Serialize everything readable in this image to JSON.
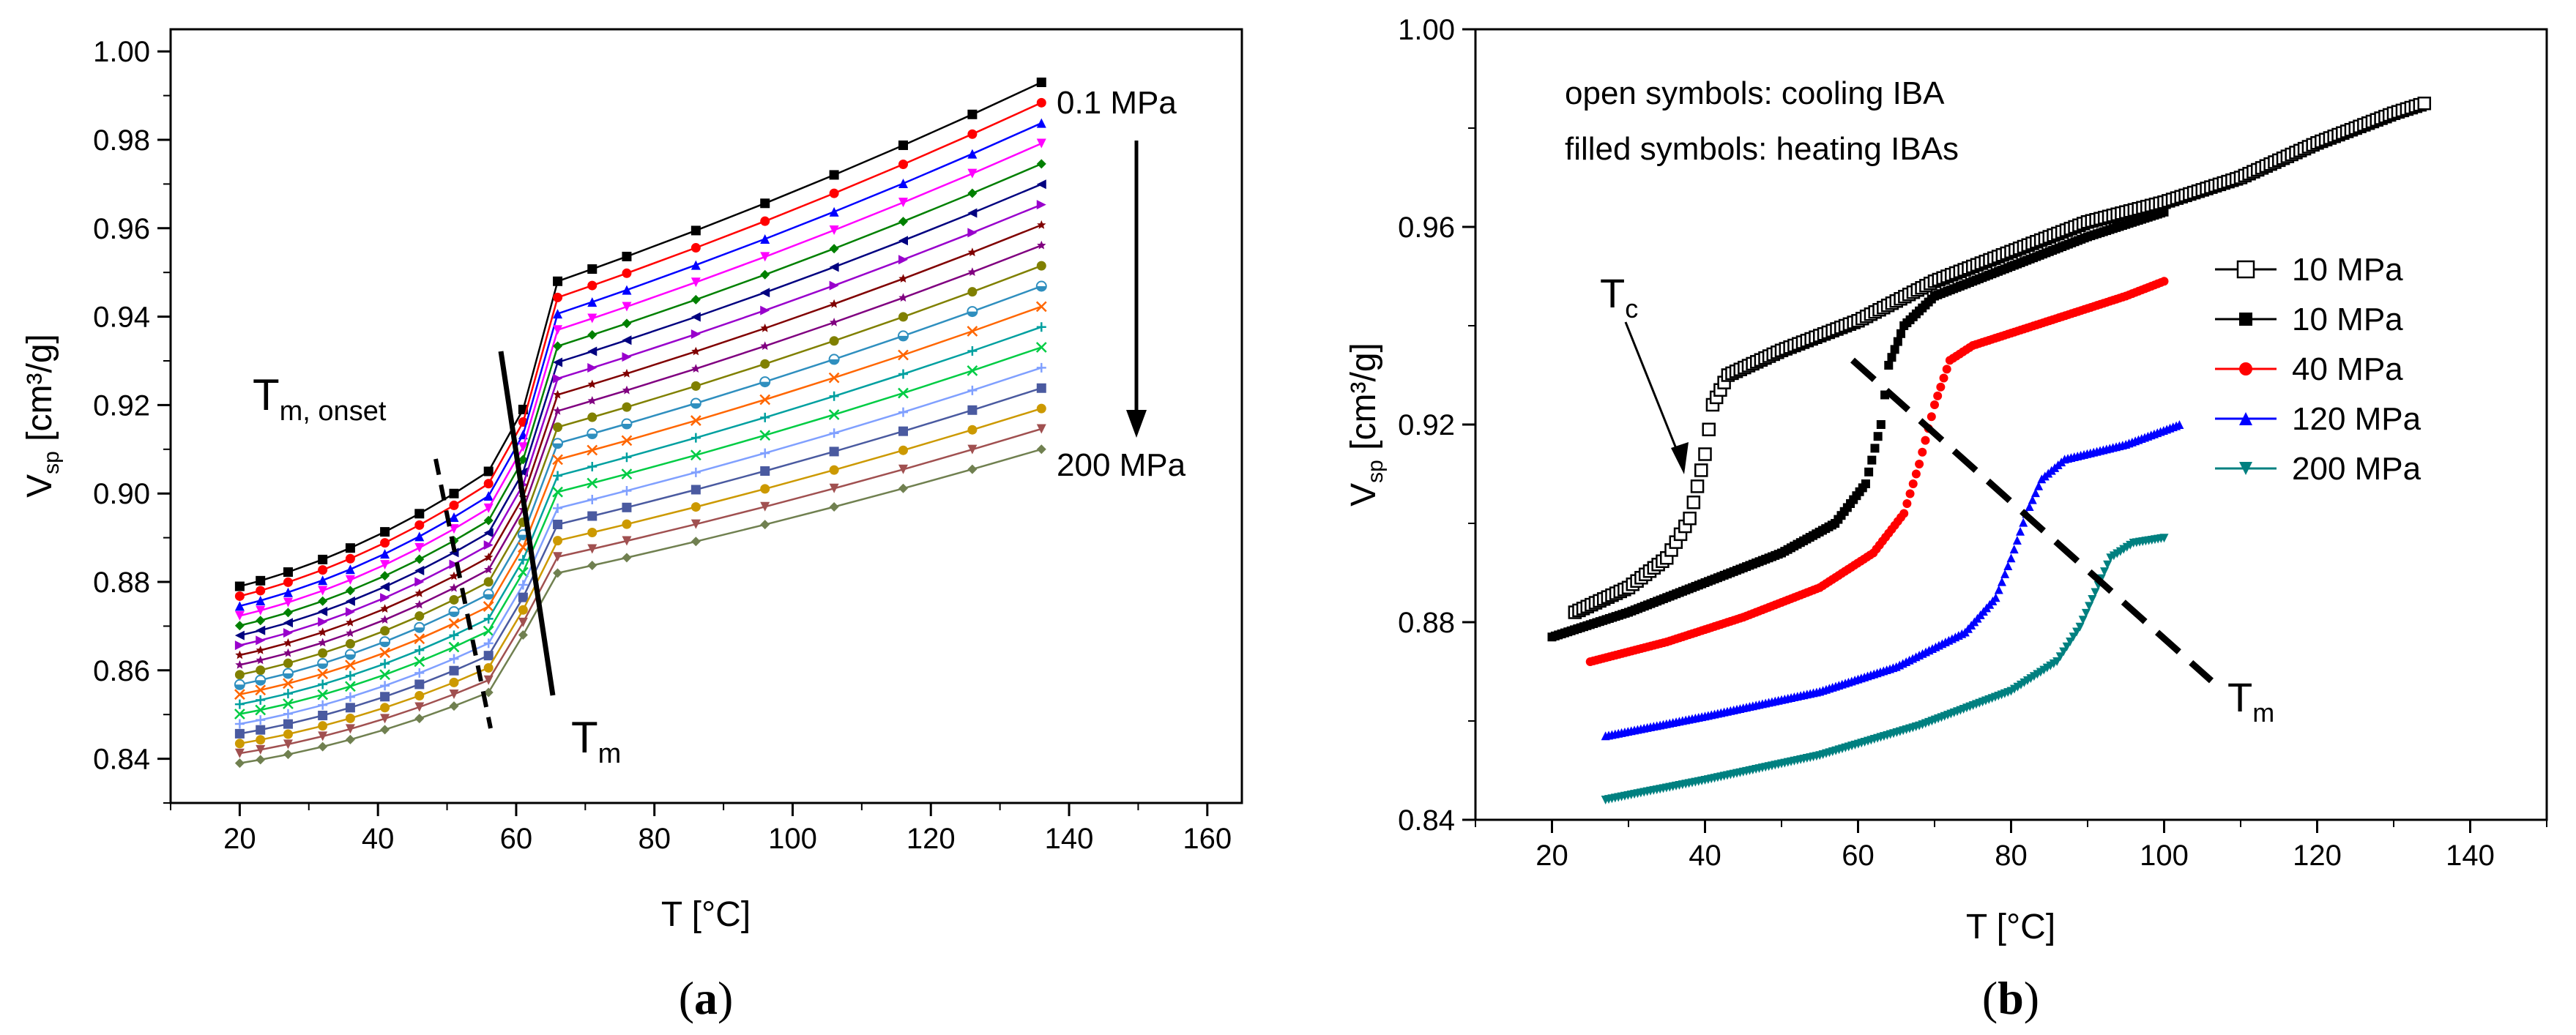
{
  "chart_data": [
    {
      "type": "line",
      "panel_label": "a",
      "xlabel": "T [°C]",
      "ylabel_main": "V",
      "ylabel_sub": "sp",
      "ylabel_unit": " [cm³/g]",
      "xlim": [
        10,
        165
      ],
      "ylim": [
        0.83,
        1.005
      ],
      "x_ticks": [
        20,
        40,
        60,
        80,
        100,
        120,
        140,
        160
      ],
      "y_ticks": [
        0.84,
        0.86,
        0.88,
        0.9,
        0.92,
        0.94,
        0.96,
        0.98,
        1.0
      ],
      "x": [
        20,
        23,
        27,
        32,
        36,
        41,
        46,
        51,
        56,
        61,
        66,
        71,
        76,
        86,
        96,
        106,
        116,
        126,
        136
      ],
      "pressure_first_label": "0.1 MPa",
      "pressure_last_label": "200 MPa",
      "annot_tm_onset_main": "T",
      "annot_tm_onset_sub": "m, onset",
      "annot_tm_main": "T",
      "annot_tm_sub": "m",
      "series_count": 19,
      "series_first": {
        "name": "0.1 MPa",
        "low_start": 0.879,
        "low_end": 0.905,
        "peak": 0.919,
        "high_start": 0.948,
        "high_end": 0.993
      },
      "series_last": {
        "name": "200 MPa",
        "low_start": 0.839,
        "low_end": 0.855,
        "peak": 0.868,
        "high_start": 0.882,
        "high_end": 0.91
      },
      "series_colors": [
        "#000000",
        "#ff0000",
        "#0000ff",
        "#ff00ff",
        "#008000",
        "#000080",
        "#9900cc",
        "#800000",
        "#800080",
        "#808000",
        "#2f8fbf",
        "#ff6600",
        "#00a0a0",
        "#00cc44",
        "#80a0ff",
        "#4a5aa0",
        "#cc9900",
        "#a05050",
        "#708050"
      ]
    },
    {
      "type": "scatter",
      "panel_label": "b",
      "xlabel": "T [°C]",
      "ylabel_main": "V",
      "ylabel_sub": "sp",
      "ylabel_unit": " [cm³/g]",
      "xlim": [
        10,
        150
      ],
      "ylim": [
        0.84,
        1.0
      ],
      "x_ticks": [
        20,
        40,
        60,
        80,
        100,
        120,
        140
      ],
      "y_ticks": [
        0.84,
        0.88,
        0.92,
        0.96,
        1.0
      ],
      "note_line1": "open symbols: cooling IBA",
      "note_line2": "filled symbols: heating IBAs",
      "annot_tc_main": "T",
      "annot_tc_sub": "c",
      "annot_tm_main": "T",
      "annot_tm_sub": "m",
      "series": [
        {
          "name": "10 MPa",
          "mode": "cooling",
          "marker": "open-square",
          "color": "#000000",
          "points": [
            [
              23,
              0.882
            ],
            [
              30,
              0.887
            ],
            [
              35,
              0.893
            ],
            [
              38,
              0.901
            ],
            [
              40,
              0.914
            ],
            [
              41,
              0.924
            ],
            [
              43,
              0.93
            ],
            [
              50,
              0.935
            ],
            [
              60,
              0.941
            ],
            [
              70,
              0.949
            ],
            [
              80,
              0.955
            ],
            [
              90,
              0.961
            ],
            [
              100,
              0.965
            ],
            [
              110,
              0.97
            ],
            [
              120,
              0.977
            ],
            [
              130,
              0.983
            ],
            [
              134,
              0.985
            ]
          ]
        },
        {
          "name": "10 MPa",
          "mode": "heating",
          "marker": "filled-square",
          "color": "#000000",
          "points": [
            [
              20,
              0.877
            ],
            [
              30,
              0.882
            ],
            [
              40,
              0.888
            ],
            [
              50,
              0.894
            ],
            [
              57,
              0.9
            ],
            [
              61,
              0.908
            ],
            [
              63,
              0.92
            ],
            [
              64,
              0.932
            ],
            [
              66,
              0.94
            ],
            [
              70,
              0.946
            ],
            [
              80,
              0.952
            ],
            [
              90,
              0.958
            ],
            [
              100,
              0.963
            ]
          ]
        },
        {
          "name": "40 MPa",
          "mode": "heating",
          "marker": "filled-circle",
          "color": "#ff0000",
          "points": [
            [
              25,
              0.872
            ],
            [
              35,
              0.876
            ],
            [
              45,
              0.881
            ],
            [
              55,
              0.887
            ],
            [
              62,
              0.894
            ],
            [
              66,
              0.902
            ],
            [
              68,
              0.912
            ],
            [
              70,
              0.924
            ],
            [
              72,
              0.933
            ],
            [
              75,
              0.936
            ],
            [
              85,
              0.941
            ],
            [
              95,
              0.946
            ],
            [
              100,
              0.949
            ]
          ]
        },
        {
          "name": "120 MPa",
          "mode": "heating",
          "marker": "filled-triangle-up",
          "color": "#0000ff",
          "points": [
            [
              27,
              0.857
            ],
            [
              40,
              0.861
            ],
            [
              55,
              0.866
            ],
            [
              65,
              0.871
            ],
            [
              74,
              0.878
            ],
            [
              78,
              0.885
            ],
            [
              80,
              0.893
            ],
            [
              82,
              0.902
            ],
            [
              84,
              0.909
            ],
            [
              87,
              0.913
            ],
            [
              95,
              0.916
            ],
            [
              102,
              0.92
            ]
          ]
        },
        {
          "name": "200 MPa",
          "mode": "heating",
          "marker": "filled-triangle-down",
          "color": "#008080",
          "points": [
            [
              27,
              0.844
            ],
            [
              40,
              0.848
            ],
            [
              55,
              0.853
            ],
            [
              68,
              0.859
            ],
            [
              80,
              0.866
            ],
            [
              86,
              0.872
            ],
            [
              89,
              0.879
            ],
            [
              91,
              0.886
            ],
            [
              93,
              0.893
            ],
            [
              96,
              0.896
            ],
            [
              100,
              0.897
            ]
          ]
        }
      ]
    }
  ],
  "caption_a_open": "(",
  "caption_a_letter": "a",
  "caption_a_close": ")",
  "caption_b_open": "(",
  "caption_b_letter": "b",
  "caption_b_close": ")"
}
